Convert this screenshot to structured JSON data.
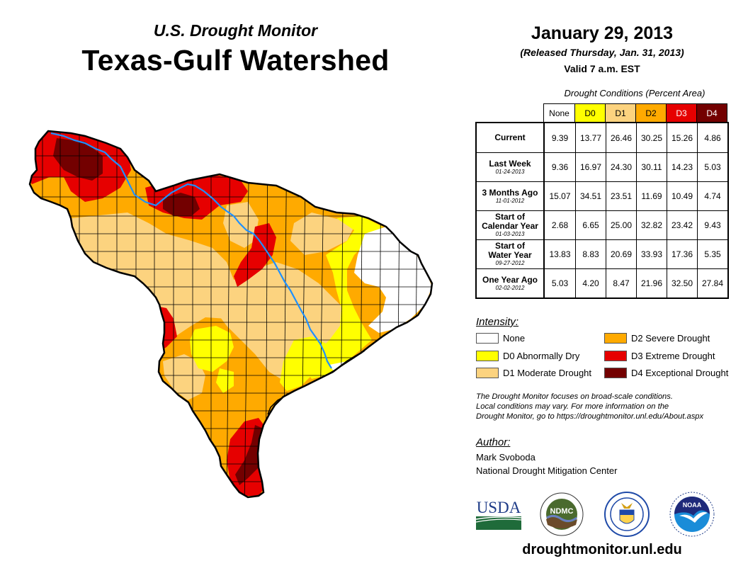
{
  "header": {
    "subtitle": "U.S. Drought Monitor",
    "title": "Texas-Gulf Watershed",
    "date": "January 29, 2013",
    "released": "(Released Thursday, Jan. 31, 2013)",
    "valid": "Valid 7 a.m. EST"
  },
  "table": {
    "caption": "Drought Conditions (Percent Area)",
    "columns": [
      {
        "label": "None",
        "color": "#ffffff",
        "text_color": "#000000"
      },
      {
        "label": "D0",
        "color": "#ffff00",
        "text_color": "#000000"
      },
      {
        "label": "D1",
        "color": "#fcd37f",
        "text_color": "#000000"
      },
      {
        "label": "D2",
        "color": "#ffaa00",
        "text_color": "#000000"
      },
      {
        "label": "D3",
        "color": "#e60000",
        "text_color": "#ffffff"
      },
      {
        "label": "D4",
        "color": "#730000",
        "text_color": "#ffffff"
      }
    ],
    "rows": [
      {
        "label": [
          "Current"
        ],
        "date": "",
        "values": [
          "9.39",
          "13.77",
          "26.46",
          "30.25",
          "15.26",
          "4.86"
        ]
      },
      {
        "label": [
          "Last Week"
        ],
        "date": "01-24-2013",
        "values": [
          "9.36",
          "16.97",
          "24.30",
          "30.11",
          "14.23",
          "5.03"
        ]
      },
      {
        "label": [
          "3 Months Ago"
        ],
        "date": "11-01-2012",
        "values": [
          "15.07",
          "34.51",
          "23.51",
          "11.69",
          "10.49",
          "4.74"
        ]
      },
      {
        "label": [
          "Start of",
          "Calendar Year"
        ],
        "date": "01-03-2013",
        "values": [
          "2.68",
          "6.65",
          "25.00",
          "32.82",
          "23.42",
          "9.43"
        ]
      },
      {
        "label": [
          "Start of",
          "Water Year"
        ],
        "date": "09-27-2012",
        "values": [
          "13.83",
          "8.83",
          "20.69",
          "33.93",
          "17.36",
          "5.35"
        ]
      },
      {
        "label": [
          "One Year Ago"
        ],
        "date": "02-02-2012",
        "values": [
          "5.03",
          "4.20",
          "8.47",
          "21.96",
          "32.50",
          "27.84"
        ]
      }
    ]
  },
  "legend": {
    "title": "Intensity:",
    "items": [
      {
        "label": "None",
        "color": "#ffffff"
      },
      {
        "label": "D0 Abnormally Dry",
        "color": "#ffff00"
      },
      {
        "label": "D1 Moderate Drought",
        "color": "#fcd37f"
      },
      {
        "label": "D2 Severe Drought",
        "color": "#ffaa00"
      },
      {
        "label": "D3 Extreme Drought",
        "color": "#e60000"
      },
      {
        "label": "D4 Exceptional Drought",
        "color": "#730000"
      }
    ]
  },
  "note": [
    "The Drought Monitor focuses on broad-scale conditions.",
    "Local conditions may vary. For more information on the",
    "Drought Monitor, go to https://droughtmonitor.unl.edu/About.aspx"
  ],
  "author": {
    "title": "Author:",
    "name": "Mark Svoboda",
    "organization": "National Drought Mitigation Center"
  },
  "logos": [
    {
      "name": "usda-logo",
      "text": "USDA"
    },
    {
      "name": "ndmc-logo",
      "text": "NDMC"
    },
    {
      "name": "commerce-logo",
      "text": ""
    },
    {
      "name": "noaa-logo",
      "text": "NOAA"
    }
  ],
  "website": "droughtmonitor.unl.edu",
  "map": {
    "region": "Texas-Gulf Watershed",
    "river_color": "#1e90ff",
    "colors": {
      "none": "#ffffff",
      "d0": "#ffff00",
      "d1": "#fcd37f",
      "d2": "#ffaa00",
      "d3": "#e60000",
      "d4": "#730000"
    }
  }
}
